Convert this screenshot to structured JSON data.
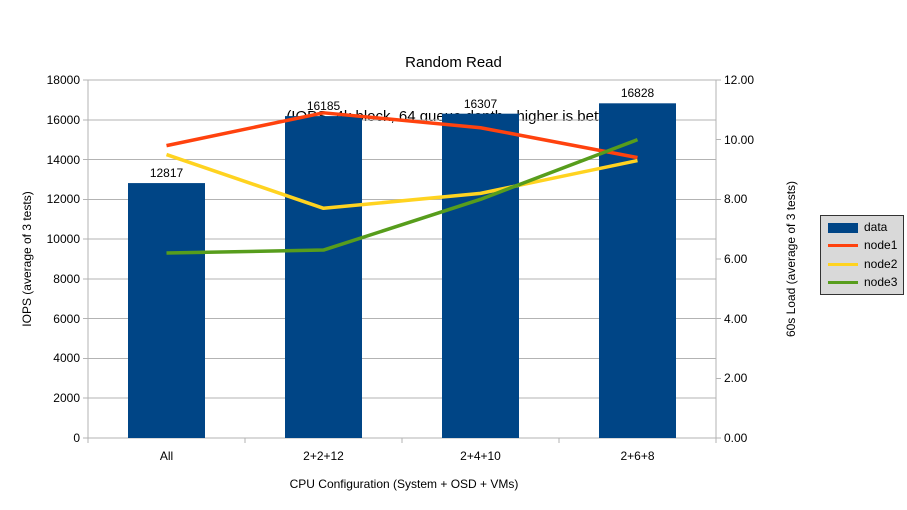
{
  "title": {
    "line1": "Random Read",
    "line2": "(IOPS, 4k block, 64 queue depth - higher is better)"
  },
  "chart_data": {
    "type": "bar+line combo",
    "title": "Random Read (IOPS, 4k block, 64 queue depth - higher is better)",
    "categories": [
      "All",
      "2+2+12",
      "2+4+10",
      "2+6+8"
    ],
    "bar_series": {
      "name": "data",
      "axis": "left",
      "values": [
        12817,
        16185,
        16307,
        16828
      ],
      "data_labels": [
        "12817",
        "16185",
        "16307",
        "16828"
      ],
      "color": "#004586"
    },
    "line_series": [
      {
        "name": "node1",
        "axis": "right",
        "values": [
          9.8,
          10.9,
          10.4,
          9.4
        ],
        "color": "#ff420e"
      },
      {
        "name": "node2",
        "axis": "right",
        "values": [
          9.5,
          7.7,
          8.2,
          9.3
        ],
        "color": "#ffd320"
      },
      {
        "name": "node3",
        "axis": "right",
        "values": [
          6.2,
          6.3,
          8.0,
          10.0
        ],
        "color": "#579d1c"
      }
    ],
    "left_axis": {
      "label": "IOPS (average of 3 tests)",
      "min": 0,
      "max": 18000,
      "step": 2000,
      "ticks": [
        "0",
        "2000",
        "4000",
        "6000",
        "8000",
        "10000",
        "12000",
        "14000",
        "16000",
        "18000"
      ]
    },
    "right_axis": {
      "label": "60s Load (average of 3 tests)",
      "min": 0,
      "max": 12,
      "step": 2,
      "ticks": [
        "0.00",
        "2.00",
        "4.00",
        "6.00",
        "8.00",
        "10.00",
        "12.00"
      ]
    },
    "x_axis": {
      "label": "CPU Configuration (System + OSD + VMs)"
    },
    "legend": {
      "position": "right",
      "entries": [
        "data",
        "node1",
        "node2",
        "node3"
      ]
    },
    "grid": "horizontal",
    "colors": {
      "grid": "#b3b3b3",
      "axis": "#b3b3b3",
      "text": "#000000",
      "legend_bg": "#d9d9d9",
      "legend_border": "#333333"
    }
  }
}
